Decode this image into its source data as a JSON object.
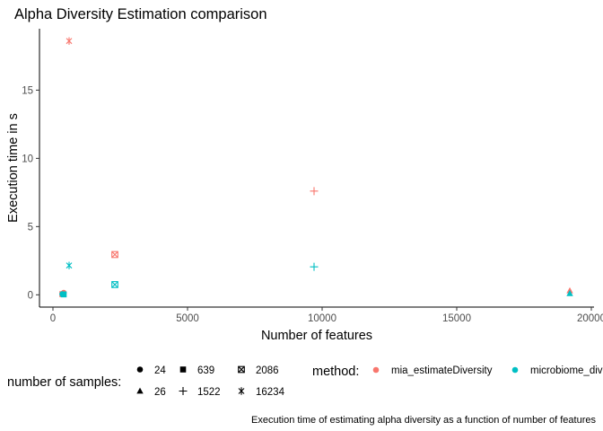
{
  "chart_data": {
    "type": "scatter",
    "title": "Alpha Diversity Estimation comparison",
    "xlabel": "Number of features",
    "ylabel": "Execution time in s",
    "caption": "Execution time of estimating alpha diversity as a function of number of features",
    "xlim": [
      -500,
      20100
    ],
    "ylim": [
      -0.9,
      19.5
    ],
    "x_ticks": [
      0,
      5000,
      10000,
      15000,
      20000
    ],
    "x_tick_labels": [
      "0",
      "5000",
      "10000",
      "15000",
      "20000"
    ],
    "y_ticks": [
      0,
      5,
      10,
      15
    ],
    "y_tick_labels": [
      "0",
      "5",
      "10",
      "15"
    ],
    "grid": false,
    "legend_position": "bottom",
    "colors": {
      "mia_estimateDiversity": "#F8766D",
      "microbiome_div": "#00BFC4"
    },
    "shape_legend": {
      "title": "number of samples:",
      "entries": [
        {
          "label": "24",
          "shape": "circle"
        },
        {
          "label": "26",
          "shape": "triangle"
        },
        {
          "label": "639",
          "shape": "square"
        },
        {
          "label": "1522",
          "shape": "plus"
        },
        {
          "label": "2086",
          "shape": "boxed-x"
        },
        {
          "label": "16234",
          "shape": "asterisk"
        }
      ]
    },
    "color_legend": {
      "title": "method:",
      "entries": [
        "mia_estimateDiversity",
        "microbiome_div"
      ]
    },
    "series": [
      {
        "name": "mia_estimateDiversity",
        "points": [
          {
            "x": 400,
            "y": 0.15,
            "samples": "24"
          },
          {
            "x": 19200,
            "y": 0.3,
            "samples": "26"
          },
          {
            "x": 350,
            "y": 0.05,
            "samples": "639"
          },
          {
            "x": 9700,
            "y": 7.6,
            "samples": "1522"
          },
          {
            "x": 2300,
            "y": 2.95,
            "samples": "2086"
          },
          {
            "x": 600,
            "y": 18.6,
            "samples": "16234"
          }
        ]
      },
      {
        "name": "microbiome_div",
        "points": [
          {
            "x": 350,
            "y": 0.05,
            "samples": "24"
          },
          {
            "x": 19200,
            "y": 0.1,
            "samples": "26"
          },
          {
            "x": 400,
            "y": 0.03,
            "samples": "639"
          },
          {
            "x": 9700,
            "y": 2.05,
            "samples": "1522"
          },
          {
            "x": 2300,
            "y": 0.75,
            "samples": "2086"
          },
          {
            "x": 600,
            "y": 2.15,
            "samples": "16234"
          }
        ]
      }
    ]
  }
}
